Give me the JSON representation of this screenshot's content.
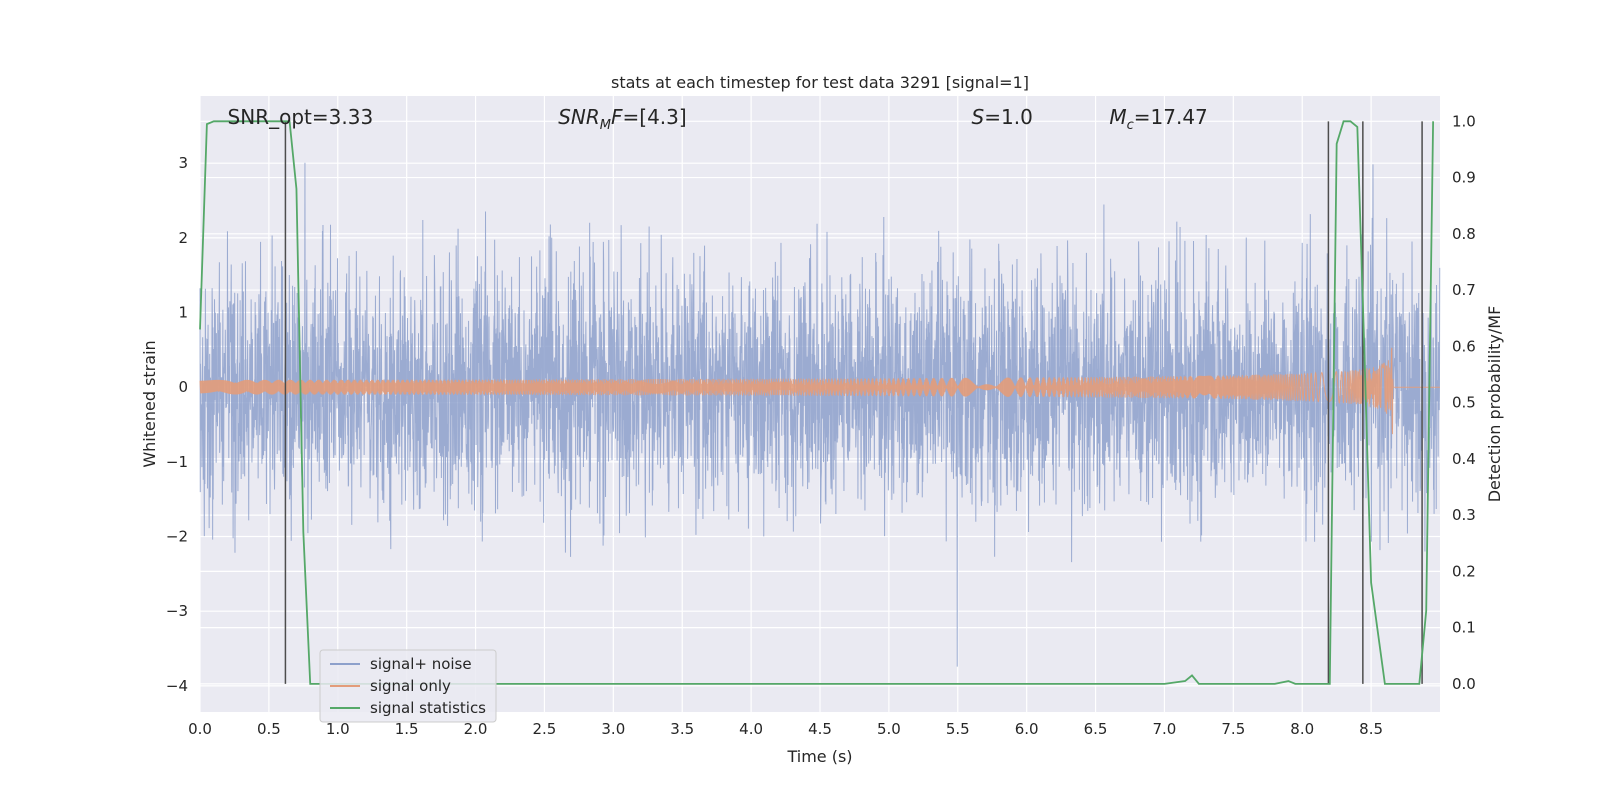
{
  "chart_data": {
    "type": "line",
    "title": "stats at each timestep for test data 3291 [signal=1]",
    "xlabel": "Time (s)",
    "ylabel": "Whitened strain",
    "ylabel_right": "Detection probability/MF",
    "xlim": [
      0,
      9
    ],
    "ylim": [
      -4.35,
      3.9
    ],
    "ylim_right": [
      -0.05,
      1.045
    ],
    "grid": true,
    "legend": "lower-left",
    "x_ticks": [
      {
        "value": 0.0,
        "label": "0.0"
      },
      {
        "value": 0.5,
        "label": "0.5"
      },
      {
        "value": 1.0,
        "label": "1.0"
      },
      {
        "value": 1.5,
        "label": "1.5"
      },
      {
        "value": 2.0,
        "label": "2.0"
      },
      {
        "value": 2.5,
        "label": "2.5"
      },
      {
        "value": 3.0,
        "label": "3.0"
      },
      {
        "value": 3.5,
        "label": "3.5"
      },
      {
        "value": 4.0,
        "label": "4.0"
      },
      {
        "value": 4.5,
        "label": "4.5"
      },
      {
        "value": 5.0,
        "label": "5.0"
      },
      {
        "value": 5.5,
        "label": "5.5"
      },
      {
        "value": 6.0,
        "label": "6.0"
      },
      {
        "value": 6.5,
        "label": "6.5"
      },
      {
        "value": 7.0,
        "label": "7.0"
      },
      {
        "value": 7.5,
        "label": "7.5"
      },
      {
        "value": 8.0,
        "label": "8.0"
      },
      {
        "value": 8.5,
        "label": "8.5"
      }
    ],
    "y_ticks": [
      {
        "value": 3,
        "label": "3"
      },
      {
        "value": 2,
        "label": "2"
      },
      {
        "value": 1,
        "label": "1"
      },
      {
        "value": 0,
        "label": "0"
      },
      {
        "value": -1,
        "label": "−1"
      },
      {
        "value": -2,
        "label": "−2"
      },
      {
        "value": -3,
        "label": "−3"
      },
      {
        "value": -4,
        "label": "−4"
      }
    ],
    "y_ticks_right": [
      {
        "value": 1.0,
        "label": "1.0"
      },
      {
        "value": 0.9,
        "label": "0.9"
      },
      {
        "value": 0.8,
        "label": "0.8"
      },
      {
        "value": 0.7,
        "label": "0.7"
      },
      {
        "value": 0.6,
        "label": "0.6"
      },
      {
        "value": 0.5,
        "label": "0.5"
      },
      {
        "value": 0.4,
        "label": "0.4"
      },
      {
        "value": 0.3,
        "label": "0.3"
      },
      {
        "value": 0.2,
        "label": "0.2"
      },
      {
        "value": 0.1,
        "label": "0.1"
      },
      {
        "value": 0.0,
        "label": "0.0"
      }
    ],
    "annotations": [
      {
        "text": "SNR_opt=3.33",
        "x": 0.2
      },
      {
        "text": "SNR_MF=[4.3]",
        "x": 2.6
      },
      {
        "text": "S=1.0",
        "x": 5.6
      },
      {
        "text": "M_c=17.47",
        "x": 6.6
      }
    ],
    "series": [
      {
        "name": "signal+ noise",
        "axis": "left",
        "color": "#8da0cb",
        "description": "whitened noise, approx. amplitude ±1.3 with peaks up to ±3.5",
        "sample_rate": 512,
        "duration": 9.0
      },
      {
        "name": "signal only",
        "axis": "left",
        "color": "#e39c7a",
        "description": "chirp signal growing near merger",
        "peak_time": 8.66,
        "peak_amplitude": 0.7
      },
      {
        "name": "signal statistics",
        "axis": "right",
        "color": "#55a868",
        "x": [
          0.0,
          0.05,
          0.1,
          0.15,
          0.2,
          0.3,
          0.4,
          0.5,
          0.55,
          0.6,
          0.65,
          0.7,
          0.75,
          0.8,
          1.0,
          2.0,
          3.0,
          4.0,
          5.0,
          6.0,
          7.0,
          7.15,
          7.2,
          7.25,
          7.3,
          7.4,
          7.6,
          7.8,
          7.9,
          7.95,
          8.0,
          8.1,
          8.15,
          8.2,
          8.25,
          8.3,
          8.35,
          8.4,
          8.45,
          8.5,
          8.6,
          8.65,
          8.7,
          8.8,
          8.85,
          8.9,
          8.95
        ],
        "y": [
          0.63,
          0.995,
          1.0,
          1.0,
          1.0,
          1.0,
          1.0,
          1.0,
          1.0,
          1.0,
          1.0,
          0.88,
          0.27,
          0.0,
          0.0,
          0.0,
          0.0,
          0.0,
          0.0,
          0.0,
          0.0,
          0.005,
          0.015,
          0.0,
          0.0,
          0.0,
          0.0,
          0.0,
          0.005,
          0.0,
          0.0,
          0.0,
          0.0,
          0.0,
          0.96,
          1.0,
          1.0,
          0.99,
          0.6,
          0.18,
          0.0,
          0.0,
          0.0,
          0.0,
          0.0,
          0.13,
          1.0
        ]
      }
    ],
    "vlines": [
      0.62,
      8.19,
      8.44,
      8.87
    ]
  }
}
